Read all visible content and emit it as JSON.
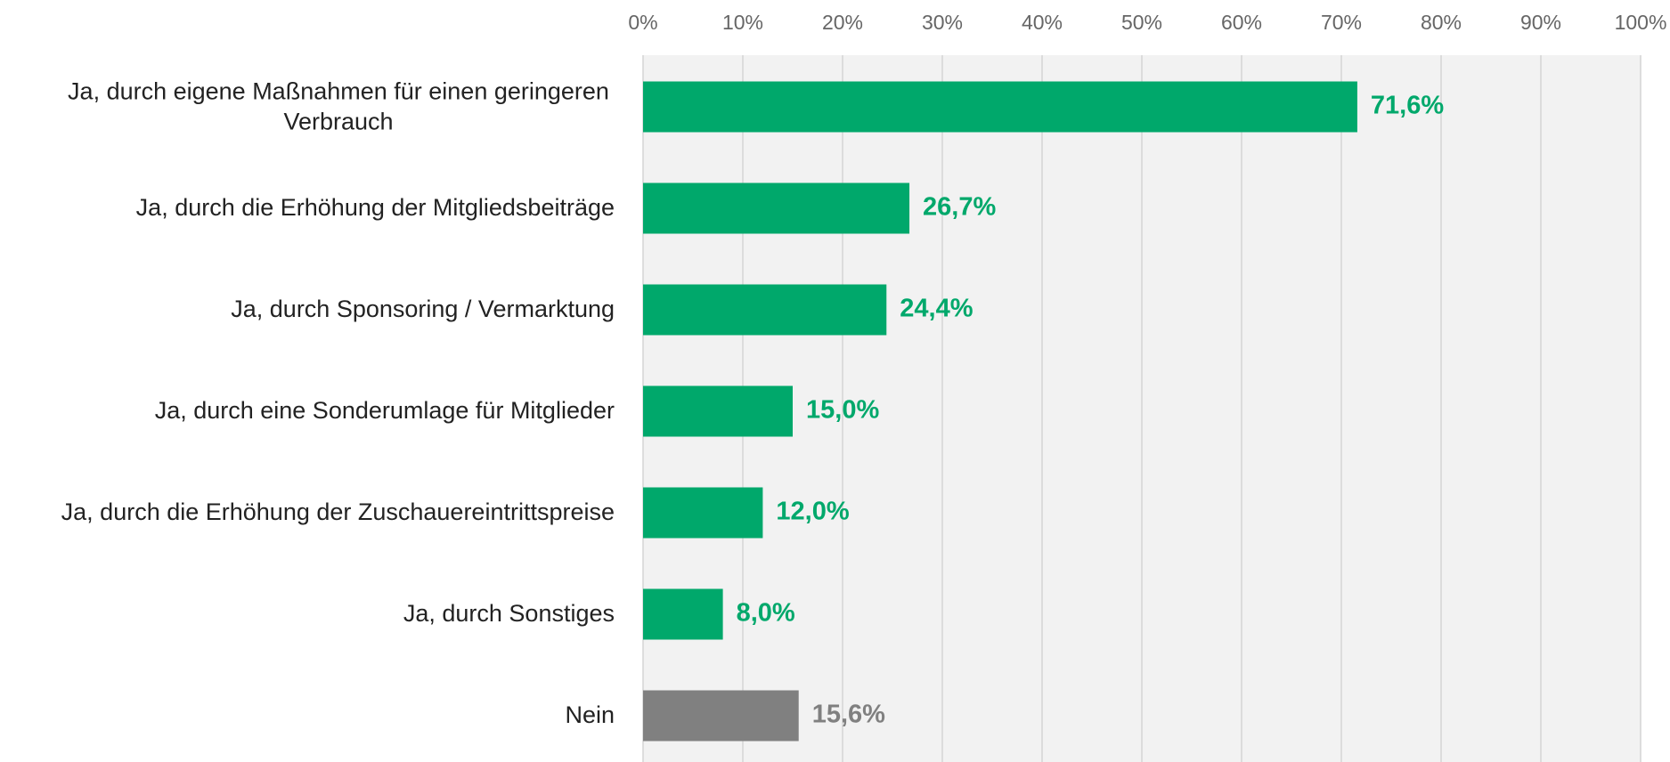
{
  "chart_data": {
    "type": "bar",
    "orientation": "horizontal",
    "categories": [
      "Ja, durch eigene Maßnahmen für einen geringeren Verbrauch",
      "Ja, durch die Erhöhung der Mitgliedsbeiträge",
      "Ja, durch Sponsoring / Vermarktung",
      "Ja, durch eine Sonderumlage für Mitglieder",
      "Ja, durch die Erhöhung der Zuschauereintrittspreise",
      "Ja, durch Sonstiges",
      "Nein"
    ],
    "values": [
      71.6,
      26.7,
      24.4,
      15.0,
      12.0,
      8.0,
      15.6
    ],
    "value_labels": [
      "71,6%",
      "26,7%",
      "24,4%",
      "15,0%",
      "12,0%",
      "8,0%",
      "15,6%"
    ],
    "colors": [
      "#00a86b",
      "#00a86b",
      "#00a86b",
      "#00a86b",
      "#00a86b",
      "#00a86b",
      "#808080"
    ],
    "xlim": [
      0,
      100
    ],
    "xticks": [
      {
        "value": 0,
        "label": "0%"
      },
      {
        "value": 10,
        "label": "10%"
      },
      {
        "value": 20,
        "label": "20%"
      },
      {
        "value": 30,
        "label": "30%"
      },
      {
        "value": 40,
        "label": "40%"
      },
      {
        "value": 50,
        "label": "50%"
      },
      {
        "value": 60,
        "label": "60%"
      },
      {
        "value": 70,
        "label": "70%"
      },
      {
        "value": 80,
        "label": "80%"
      },
      {
        "value": 90,
        "label": "90%"
      },
      {
        "value": 100,
        "label": "100%"
      }
    ],
    "grid": true
  }
}
